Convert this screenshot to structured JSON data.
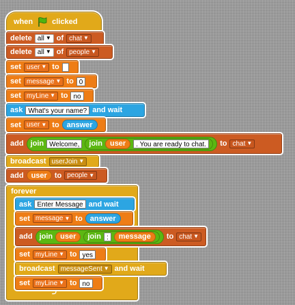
{
  "hat": {
    "when": "when",
    "clicked": "clicked"
  },
  "row1": {
    "cmd": "delete",
    "which": "all",
    "of": "of",
    "list": "chat"
  },
  "row2": {
    "cmd": "delete",
    "which": "all",
    "of": "of",
    "list": "people"
  },
  "row3": {
    "cmd": "set",
    "var": "user",
    "to": "to",
    "value": ""
  },
  "row4": {
    "cmd": "set",
    "var": "message",
    "to": "to",
    "value": "0"
  },
  "row5": {
    "cmd": "set",
    "var": "myLine",
    "to": "to",
    "value": "no"
  },
  "row6": {
    "cmd": "ask",
    "question": "What's your name?",
    "tail": "and wait"
  },
  "row7": {
    "cmd": "set",
    "var": "user",
    "to": "to",
    "reporter": "answer"
  },
  "row8": {
    "cmd": "add",
    "join": "join",
    "welcome": "Welcome,",
    "join2": "join",
    "user": "user",
    "suffix": ". You are ready to chat.",
    "to": "to",
    "list": "chat"
  },
  "row9": {
    "cmd": "broadcast",
    "message": "userJoin"
  },
  "row10": {
    "cmd": "add",
    "user": "user",
    "to": "to",
    "list": "people"
  },
  "forever": {
    "label": "forever"
  },
  "f1": {
    "cmd": "ask",
    "question": "Enter Message",
    "tail": "and wait"
  },
  "f2": {
    "cmd": "set",
    "var": "message",
    "to": "to",
    "reporter": "answer"
  },
  "f3": {
    "cmd": "add",
    "join": "join",
    "user": "user",
    "join2": "join",
    "sep": ":",
    "message": "message",
    "to": "to",
    "list": "chat"
  },
  "f4": {
    "cmd": "set",
    "var": "myLine",
    "to": "to",
    "value": "yes"
  },
  "f5": {
    "cmd": "broadcast",
    "message": "messageSent",
    "tail": "and wait"
  },
  "f6": {
    "cmd": "set",
    "var": "myLine",
    "to": "to",
    "value": "no"
  },
  "icons": {
    "flag": "green-flag-icon",
    "loop": "loop-arrow-icon",
    "dropdown": "dropdown-arrow-icon"
  },
  "colors": {
    "control": "#e1a91a",
    "variables": "#ee7d16",
    "lists": "#cc5b22",
    "sensing": "#2ca5e2",
    "operators": "#5cb712",
    "canvas": "#9a9a9a"
  }
}
